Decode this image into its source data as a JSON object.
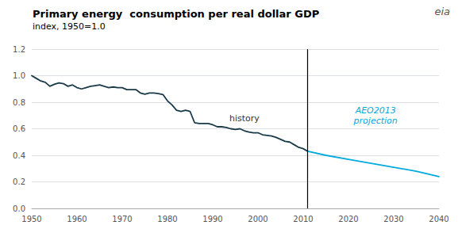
{
  "chart_data": {
    "type": "line",
    "title": "Primary energy  consumption per real dollar GDP",
    "subtitle": "index, 1950=1.0",
    "xlim": [
      1950,
      2040
    ],
    "ylim": [
      0.0,
      1.2
    ],
    "xticks": [
      1950,
      1960,
      1970,
      1980,
      1990,
      2000,
      2010,
      2020,
      2030,
      2040
    ],
    "yticks": [
      {
        "value": 0.0,
        "label": "0.0"
      },
      0.2,
      0.4,
      0.6,
      0.8,
      {
        "value": 1.0,
        "label": "1.0"
      },
      1.2
    ],
    "grid": true,
    "divider_x": 2011,
    "series": [
      {
        "color": "#1a3a4a",
        "x": [
          1950,
          1951,
          1952,
          1953,
          1954,
          1955,
          1956,
          1957,
          1958,
          1959,
          1960,
          1961,
          1962,
          1963,
          1964,
          1965,
          1966,
          1967,
          1968,
          1969,
          1970,
          1971,
          1972,
          1973,
          1974,
          1975,
          1976,
          1977,
          1978,
          1979,
          1980,
          1981,
          1982,
          1983,
          1984,
          1985,
          1986,
          1987,
          1988,
          1989,
          1990,
          1991,
          1992,
          1993,
          1994,
          1995,
          1996,
          1997,
          1998,
          1999,
          2000,
          2001,
          2002,
          2003,
          2004,
          2005,
          2006,
          2007,
          2008,
          2009,
          2010,
          2011
        ],
        "values": [
          1.0,
          0.98,
          0.96,
          0.95,
          0.92,
          0.935,
          0.945,
          0.94,
          0.92,
          0.93,
          0.91,
          0.9,
          0.91,
          0.92,
          0.925,
          0.93,
          0.92,
          0.91,
          0.915,
          0.91,
          0.91,
          0.895,
          0.895,
          0.895,
          0.87,
          0.86,
          0.87,
          0.87,
          0.865,
          0.858,
          0.81,
          0.78,
          0.74,
          0.73,
          0.74,
          0.73,
          0.645,
          0.64,
          0.64,
          0.64,
          0.63,
          0.615,
          0.615,
          0.61,
          0.6,
          0.595,
          0.6,
          0.585,
          0.575,
          0.57,
          0.57,
          0.555,
          0.55,
          0.545,
          0.535,
          0.52,
          0.505,
          0.5,
          0.48,
          0.46,
          0.45,
          0.43
        ]
      },
      {
        "color": "#00aadd",
        "x": [
          2011,
          2015,
          2020,
          2025,
          2030,
          2035,
          2040
        ],
        "values": [
          0.43,
          0.4,
          0.37,
          0.34,
          0.31,
          0.28,
          0.24
        ]
      }
    ],
    "annotations": [
      {
        "text": "history",
        "x": 1997,
        "y": 0.68,
        "color": "#333333"
      },
      {
        "text": "AEO2013\nprojection",
        "x": 2026,
        "y": 0.7,
        "color": "#00aadd"
      },
      {
        "text": "eia"
      }
    ]
  }
}
